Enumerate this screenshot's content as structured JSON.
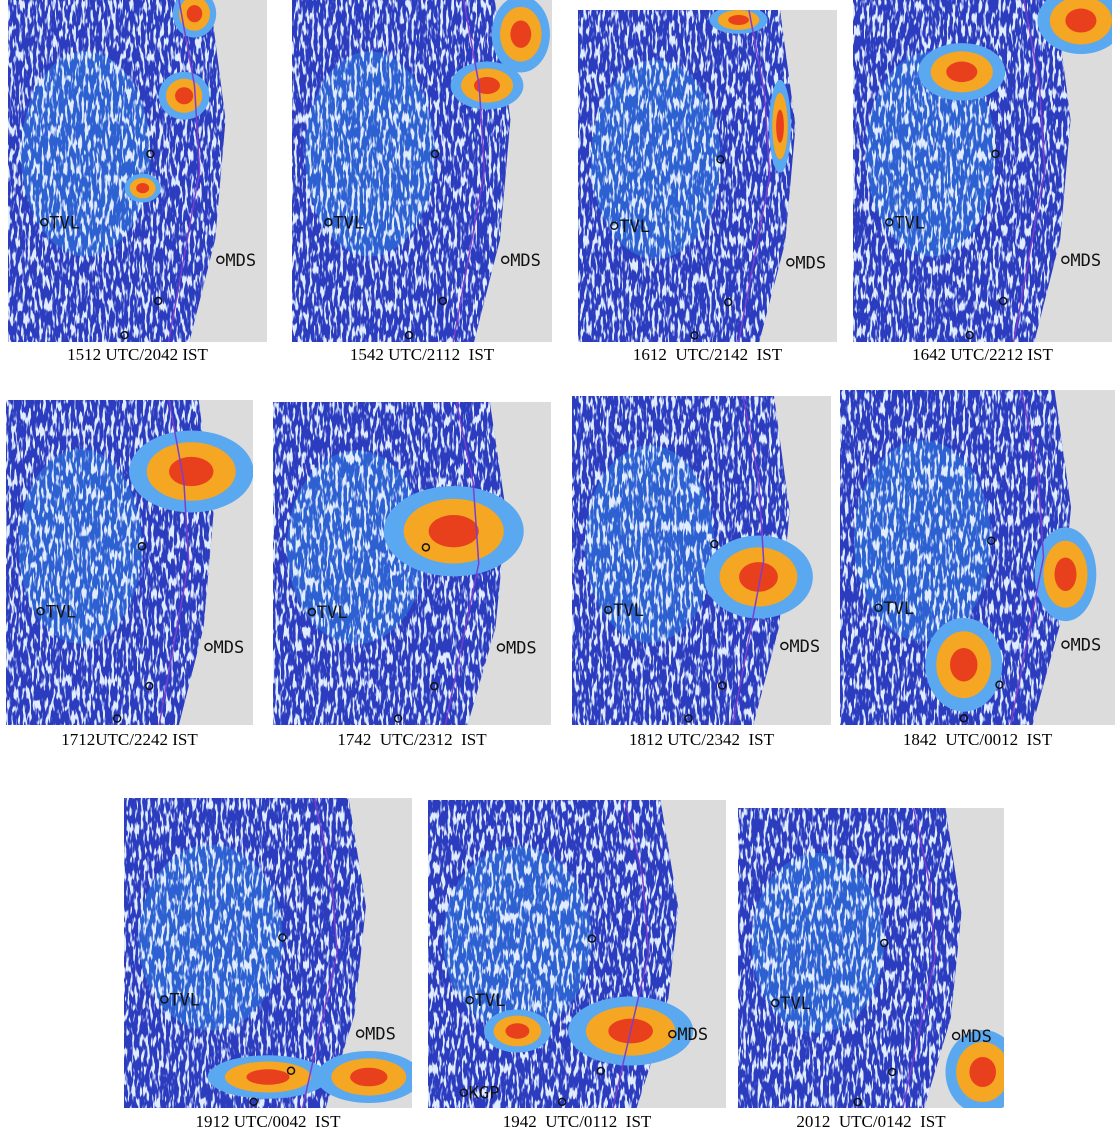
{
  "panels": [
    {
      "caption": "1512 UTC/2042 IST",
      "stations": [
        "TVL",
        "MDS"
      ]
    },
    {
      "caption": "1542 UTC/2112  IST",
      "stations": [
        "TVL",
        "MDS"
      ]
    },
    {
      "caption": "1612  UTC/2142  IST",
      "stations": [
        "TVL",
        "MDS"
      ]
    },
    {
      "caption": "1642 UTC/2212 IST",
      "stations": [
        "TVL",
        "MDS"
      ]
    },
    {
      "caption": "1712UTC/2242 IST",
      "stations": [
        "TVL",
        "MDS"
      ]
    },
    {
      "caption": "1742  UTC/2312  IST",
      "stations": [
        "TVL",
        "MDS"
      ]
    },
    {
      "caption": "1812 UTC/2342  IST",
      "stations": [
        "TVL",
        "MDS"
      ]
    },
    {
      "caption": "1842  UTC/0012  IST",
      "stations": [
        "TVL",
        "MDS"
      ]
    },
    {
      "caption": "1912 UTC/0042  IST",
      "stations": [
        "TVL",
        "MDS"
      ]
    },
    {
      "caption": "1942  UTC/0112  IST",
      "stations": [
        "TVL",
        "MDS",
        "KGP"
      ]
    },
    {
      "caption": "2012  UTC/0142  IST",
      "stations": [
        "TVL",
        "MDS"
      ]
    }
  ]
}
